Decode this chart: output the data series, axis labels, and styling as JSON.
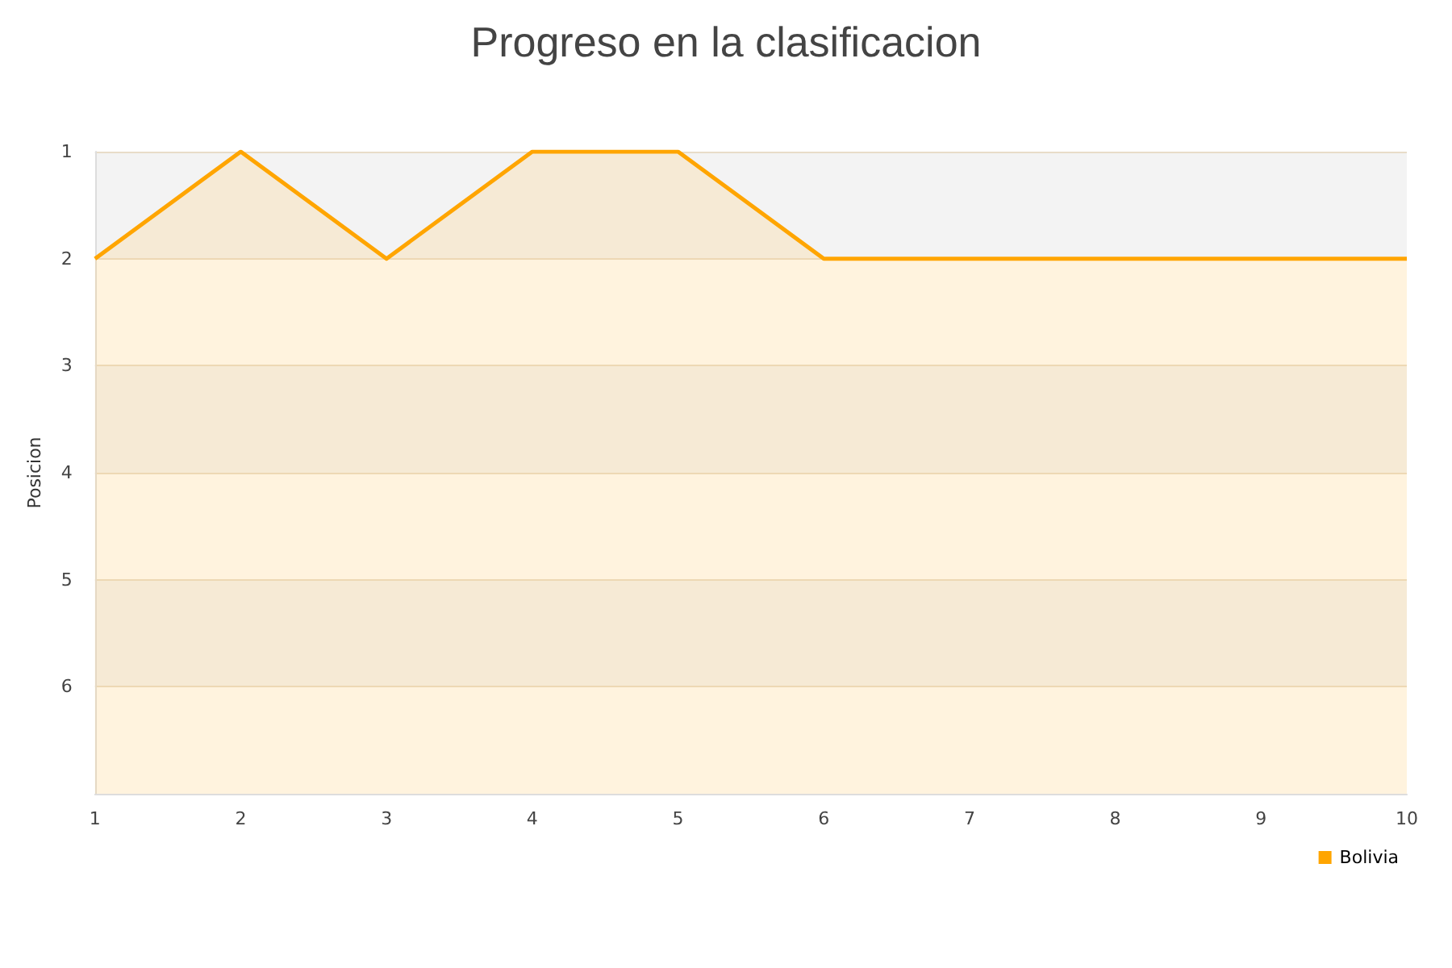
{
  "chart_data": {
    "type": "area",
    "title": "Progreso en la clasificacion",
    "ylabel": "Posicion",
    "x": [
      1,
      2,
      3,
      4,
      5,
      6,
      7,
      8,
      9,
      10
    ],
    "series": [
      {
        "name": "Bolivia",
        "color": "#ffa500",
        "values": [
          2,
          1,
          2,
          1,
          1,
          2,
          2,
          2,
          2,
          2
        ]
      }
    ],
    "xlim": [
      1,
      10
    ],
    "xticks": [
      1,
      2,
      3,
      4,
      5,
      6,
      7,
      8,
      9,
      10
    ],
    "ylim": [
      7,
      1
    ],
    "yticks": [
      1,
      2,
      3,
      4,
      5,
      6
    ],
    "grid": "y",
    "legend": "bottom right",
    "marker": "none"
  }
}
